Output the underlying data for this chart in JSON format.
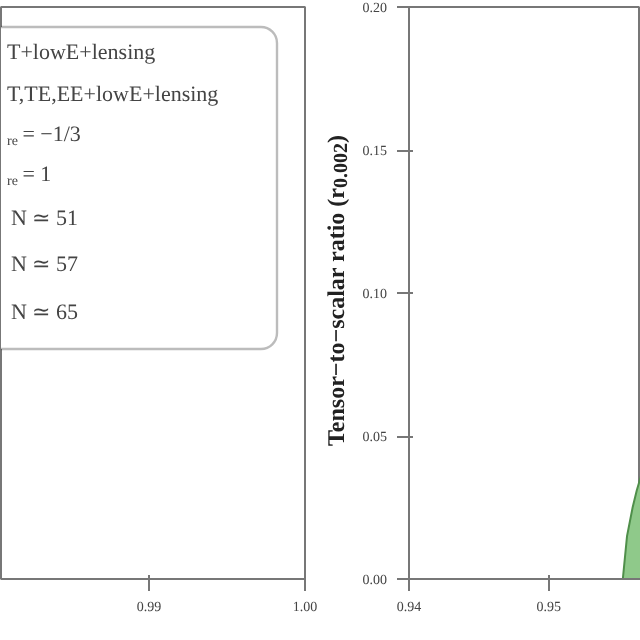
{
  "chart_data": [
    {
      "type": "other",
      "categories": [
        null,
        "0.99",
        "1.00"
      ],
      "annotations": [
        "T+lowE+lensing",
        "T,TE,EE+lowE+lensing",
        "$_{re}$ = −1/3",
        "$_{re}$ = 1",
        "N ≃ 51",
        "N ≃ 57",
        "N ≃ 65"
      ]
    },
    {
      "type": "area",
      "ylabel": "Tensor−to−scalar ratio (r$_{0.002}$)",
      "xlim": [
        0.94,
        0.9566
      ],
      "xticks": [
        0.94,
        0.95
      ],
      "ylim": [
        0.0,
        0.2
      ],
      "yticks": [
        {
          "value": 0.0,
          "label": "0.00"
        },
        0.05,
        {
          "value": 0.1,
          "label": "0.10"
        },
        0.15,
        {
          "value": 0.2,
          "label": "0.20"
        }
      ],
      "x": [
        0.9553,
        0.9556,
        0.956,
        0.9563,
        0.9566
      ],
      "series": [
        {
          "color": "#8fc98a",
          "values": [
            0.0,
            0.015,
            0.025,
            0.031,
            0.036
          ]
        }
      ]
    }
  ]
}
